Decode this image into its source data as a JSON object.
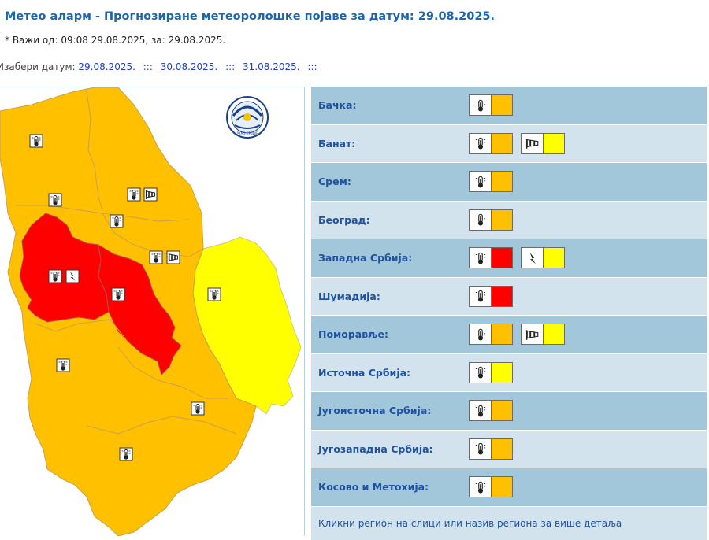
{
  "header": {
    "title": "Метео аларм - Прогнозиране метеоролошке појаве за датум:  29.08.2025.",
    "valid_line": "* Важи од: 09:08 29.08.2025, за: 29.08.2025.",
    "choose_label": "Изабери датум:",
    "dates": [
      "29.08.2025.",
      "30.08.2025.",
      "31.08.2025."
    ],
    "separator": ":::"
  },
  "colors": {
    "orange": "#ffc000",
    "red": "#ff0000",
    "yellow": "#ffff00"
  },
  "regions": [
    {
      "name": "Бачка:",
      "alerts": [
        {
          "icon": "thermometer-icon",
          "level": "orange"
        }
      ]
    },
    {
      "name": "Банат:",
      "alerts": [
        {
          "icon": "thermometer-icon",
          "level": "orange"
        },
        {
          "icon": "windsock-icon",
          "level": "yellow"
        }
      ]
    },
    {
      "name": "Срем:",
      "alerts": [
        {
          "icon": "thermometer-icon",
          "level": "orange"
        }
      ]
    },
    {
      "name": "Београд:",
      "alerts": [
        {
          "icon": "thermometer-icon",
          "level": "orange"
        }
      ]
    },
    {
      "name": "Западна Србија:",
      "alerts": [
        {
          "icon": "thermometer-icon",
          "level": "red"
        },
        {
          "icon": "lightning-icon",
          "level": "yellow"
        }
      ]
    },
    {
      "name": "Шумадија:",
      "alerts": [
        {
          "icon": "thermometer-icon",
          "level": "red"
        }
      ]
    },
    {
      "name": "Поморавље:",
      "alerts": [
        {
          "icon": "thermometer-icon",
          "level": "orange"
        },
        {
          "icon": "windsock-icon",
          "level": "yellow"
        }
      ]
    },
    {
      "name": "Источна Србија:",
      "alerts": [
        {
          "icon": "thermometer-icon",
          "level": "yellow"
        }
      ]
    },
    {
      "name": "Југоисточна Србија:",
      "alerts": [
        {
          "icon": "thermometer-icon",
          "level": "orange"
        }
      ]
    },
    {
      "name": "Југозападна Србија:",
      "alerts": [
        {
          "icon": "thermometer-icon",
          "level": "orange"
        }
      ]
    },
    {
      "name": "Косово и Метохија:",
      "alerts": [
        {
          "icon": "thermometer-icon",
          "level": "orange"
        }
      ]
    }
  ],
  "footer_text": "Кликни регион на слици или назив региона за више детаља",
  "logo": {
    "text": "РХМЗ СРБИЈЕ"
  }
}
